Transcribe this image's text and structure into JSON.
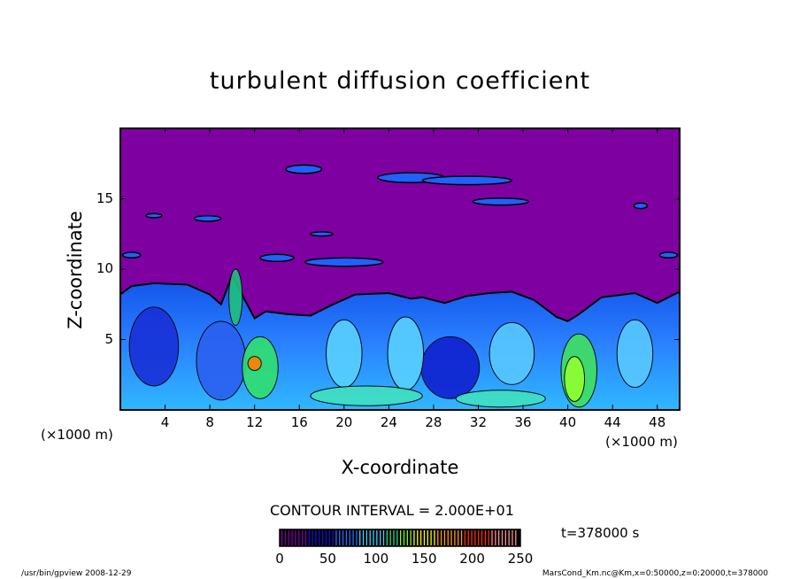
{
  "chart_data": {
    "type": "heatmap",
    "title": "turbulent diffusion coefficient",
    "xlabel": "X-coordinate",
    "ylabel": "Z-coordinate",
    "x_unit": "(×1000 m)",
    "z_unit": "(×1000 m)",
    "xlim": [
      0,
      50
    ],
    "ylim": [
      0,
      20
    ],
    "x_ticks": [
      4,
      8,
      12,
      16,
      20,
      24,
      28,
      32,
      36,
      40,
      44,
      48
    ],
    "y_ticks": [
      5,
      10,
      15
    ],
    "contour_interval_label": "CONTOUR INTERVAL = 2.000E+01",
    "contour_interval": 20,
    "colorbar": {
      "range": [
        0,
        250
      ],
      "ticks": [
        0,
        50,
        100,
        150,
        200,
        250
      ],
      "colors": [
        "#7a00a8",
        "#1010d0",
        "#2070ff",
        "#40d0ff",
        "#20e080",
        "#80ff20",
        "#ffff00",
        "#ffa000",
        "#ff3000",
        "#ff9090"
      ]
    },
    "background_value_color": "#7f00a0",
    "time_label": "t=378000 s",
    "footer_left": "/usr/bin/gpview  2008-12-29",
    "footer_right": "MarsCond_Km.nc@Km,x=0:50000,z=0:20000,t=378000"
  }
}
